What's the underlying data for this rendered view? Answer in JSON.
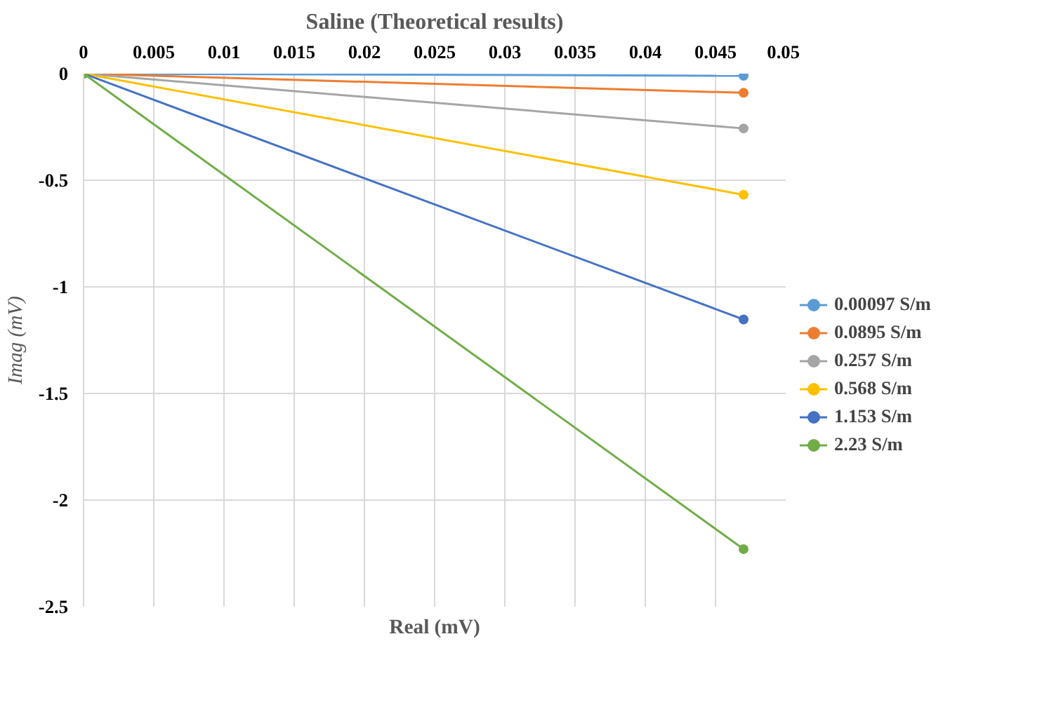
{
  "chart_data": {
    "type": "line",
    "title": "Saline (Theoretical results)",
    "xlabel": "Real (mV)",
    "ylabel": "Imag (mV)",
    "x": [
      0,
      0.047
    ],
    "series": [
      {
        "name": "0.00097 S/m",
        "color": "#5b9bd5",
        "values": [
          0,
          -0.01
        ]
      },
      {
        "name": "0.0895 S/m",
        "color": "#ed7d31",
        "values": [
          0,
          -0.09
        ]
      },
      {
        "name": "0.257 S/m",
        "color": "#a5a5a5",
        "values": [
          0,
          -0.257
        ]
      },
      {
        "name": "0.568 S/m",
        "color": "#ffc000",
        "values": [
          0,
          -0.568
        ]
      },
      {
        "name": "1.153 S/m",
        "color": "#4472c4",
        "values": [
          0,
          -1.153
        ]
      },
      {
        "name": "2.23 S/m",
        "color": "#70ad47",
        "values": [
          0,
          -2.23
        ]
      }
    ],
    "xlim": [
      0,
      0.05
    ],
    "xticks": [
      0,
      0.005,
      0.01,
      0.015,
      0.02,
      0.025,
      0.03,
      0.035,
      0.04,
      0.045,
      0.05
    ],
    "ylim": [
      -2.5,
      0
    ],
    "yticks": [
      -2.5,
      -2,
      -1.5,
      -1,
      -0.5,
      0
    ],
    "grid": true,
    "legend": "right",
    "marker": "circle",
    "line_style": "solid"
  }
}
